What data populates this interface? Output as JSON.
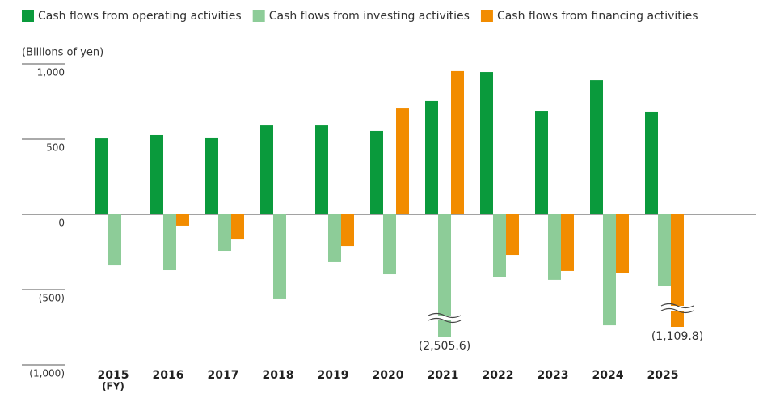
{
  "chart_data": {
    "type": "bar",
    "y_label": "(Billions of yen)",
    "x_note": "(FY)",
    "categories": [
      "2015",
      "2016",
      "2017",
      "2018",
      "2019",
      "2020",
      "2021",
      "2022",
      "2023",
      "2024",
      "2025"
    ],
    "series": [
      {
        "name": "Cash flows from operating activities",
        "color": "#0a9a3c",
        "values": [
          505,
          527,
          511,
          591,
          591,
          554,
          753,
          946,
          688,
          892,
          683
        ]
      },
      {
        "name": "Cash flows from investing activities",
        "color": "#8dcc98",
        "values": [
          -339,
          -371,
          -242,
          -559,
          -317,
          -398,
          -2505.6,
          -414,
          -435,
          -737,
          -478
        ],
        "value_labels": [
          null,
          null,
          null,
          null,
          null,
          null,
          "(2,505.6)",
          null,
          null,
          null,
          null
        ]
      },
      {
        "name": "Cash flows from financing activities",
        "color": "#f28c00",
        "values": [
          0,
          -75,
          -167,
          0,
          -210,
          704,
          952,
          -269,
          -376,
          -392,
          -1109.8
        ],
        "value_labels": [
          null,
          null,
          null,
          null,
          null,
          null,
          null,
          null,
          null,
          null,
          "(1,109.8)"
        ]
      }
    ],
    "ylim": [
      -1000,
      1000
    ],
    "yticks": [
      {
        "value": 1000,
        "label": "1,000"
      },
      500,
      0,
      {
        "value": -500,
        "label": "(500)"
      },
      {
        "value": -1000,
        "label": "(1,000)"
      }
    ]
  }
}
